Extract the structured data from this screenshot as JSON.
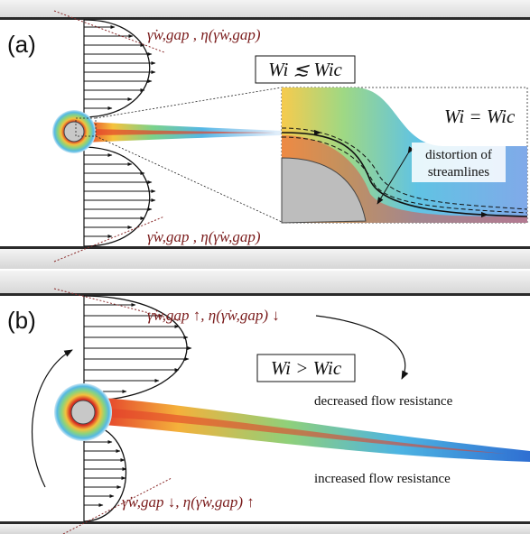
{
  "panel_a": {
    "label": "(a)",
    "top_annotation": "γ̇w,gap , η(γ̇w,gap)",
    "bottom_annotation": "γ̇w,gap , η(γ̇w,gap)",
    "regime_box": "Wi ≲ Wic",
    "inset_label": "Wi = Wic",
    "inset_note_line1": "distortion of",
    "inset_note_line2": "streamlines"
  },
  "panel_b": {
    "label": "(b)",
    "top_annotation": "γ̇w,gap ↑, η(γ̇w,gap) ↓",
    "bottom_annotation": "γ̇w,gap ↓, η(γ̇w,gap) ↑",
    "regime_box": "Wi > Wic",
    "upper_note": "decreased flow resistance",
    "lower_note": "increased flow resistance"
  },
  "colors": {
    "annotation": "#7a1b1b",
    "wall": "#2a2a2a",
    "cylinder": "#c8c8c8"
  }
}
